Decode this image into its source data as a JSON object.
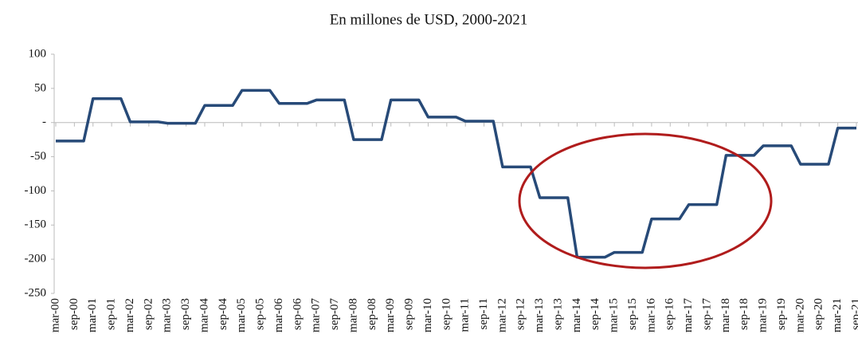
{
  "chart_data": {
    "type": "line",
    "title": "En millones de USD, 2000-2021",
    "categories": [
      "mar-00",
      null,
      "sep-00",
      null,
      "mar-01",
      null,
      "sep-01",
      null,
      "mar-02",
      null,
      "sep-02",
      null,
      "mar-03",
      null,
      "sep-03",
      null,
      "mar-04",
      null,
      "sep-04",
      null,
      "mar-05",
      null,
      "sep-05",
      null,
      "mar-06",
      null,
      "sep-06",
      null,
      "mar-07",
      null,
      "sep-07",
      null,
      "mar-08",
      null,
      "sep-08",
      null,
      "mar-09",
      null,
      "sep-09",
      null,
      "mar-10",
      null,
      "sep-10",
      null,
      "mar-11",
      null,
      "sep-11",
      null,
      "mar-12",
      null,
      "sep-12",
      null,
      "mar-13",
      null,
      "sep-13",
      null,
      "mar-14",
      null,
      "sep-14",
      null,
      "mar-15",
      null,
      "sep-15",
      null,
      "mar-16",
      null,
      "sep-16",
      null,
      "mar-17",
      null,
      "sep-17",
      null,
      "mar-18",
      null,
      "sep-18",
      null,
      "mar-19",
      null,
      "sep-19",
      null,
      "mar-20",
      null,
      "sep-20",
      null,
      "mar-21",
      null,
      "sep-21"
    ],
    "values": [
      -27,
      -27,
      -27,
      -27,
      35,
      35,
      35,
      35,
      1,
      1,
      1,
      1,
      -1,
      -1,
      -1,
      -1,
      25,
      25,
      25,
      25,
      47,
      47,
      47,
      47,
      28,
      28,
      28,
      28,
      33,
      33,
      33,
      33,
      -25,
      -25,
      -25,
      -25,
      33,
      33,
      33,
      33,
      8,
      8,
      8,
      8,
      2,
      2,
      2,
      2,
      -65,
      -65,
      -65,
      -65,
      -110,
      -110,
      -110,
      -110,
      -197,
      -197,
      -197,
      -197,
      -190,
      -190,
      -190,
      -190,
      -141,
      -141,
      -141,
      -141,
      -120,
      -120,
      -120,
      -120,
      -48,
      -48,
      -48,
      -48,
      -34,
      -34,
      -34,
      -34,
      -61,
      -61,
      -61,
      -61,
      -8,
      -8,
      -8
    ],
    "color": "#274a78",
    "ylim": [
      -250,
      100
    ],
    "yticks": [
      -250,
      -200,
      -150,
      -100,
      -50,
      {
        "value": 0,
        "label": "-"
      },
      50,
      100
    ]
  }
}
